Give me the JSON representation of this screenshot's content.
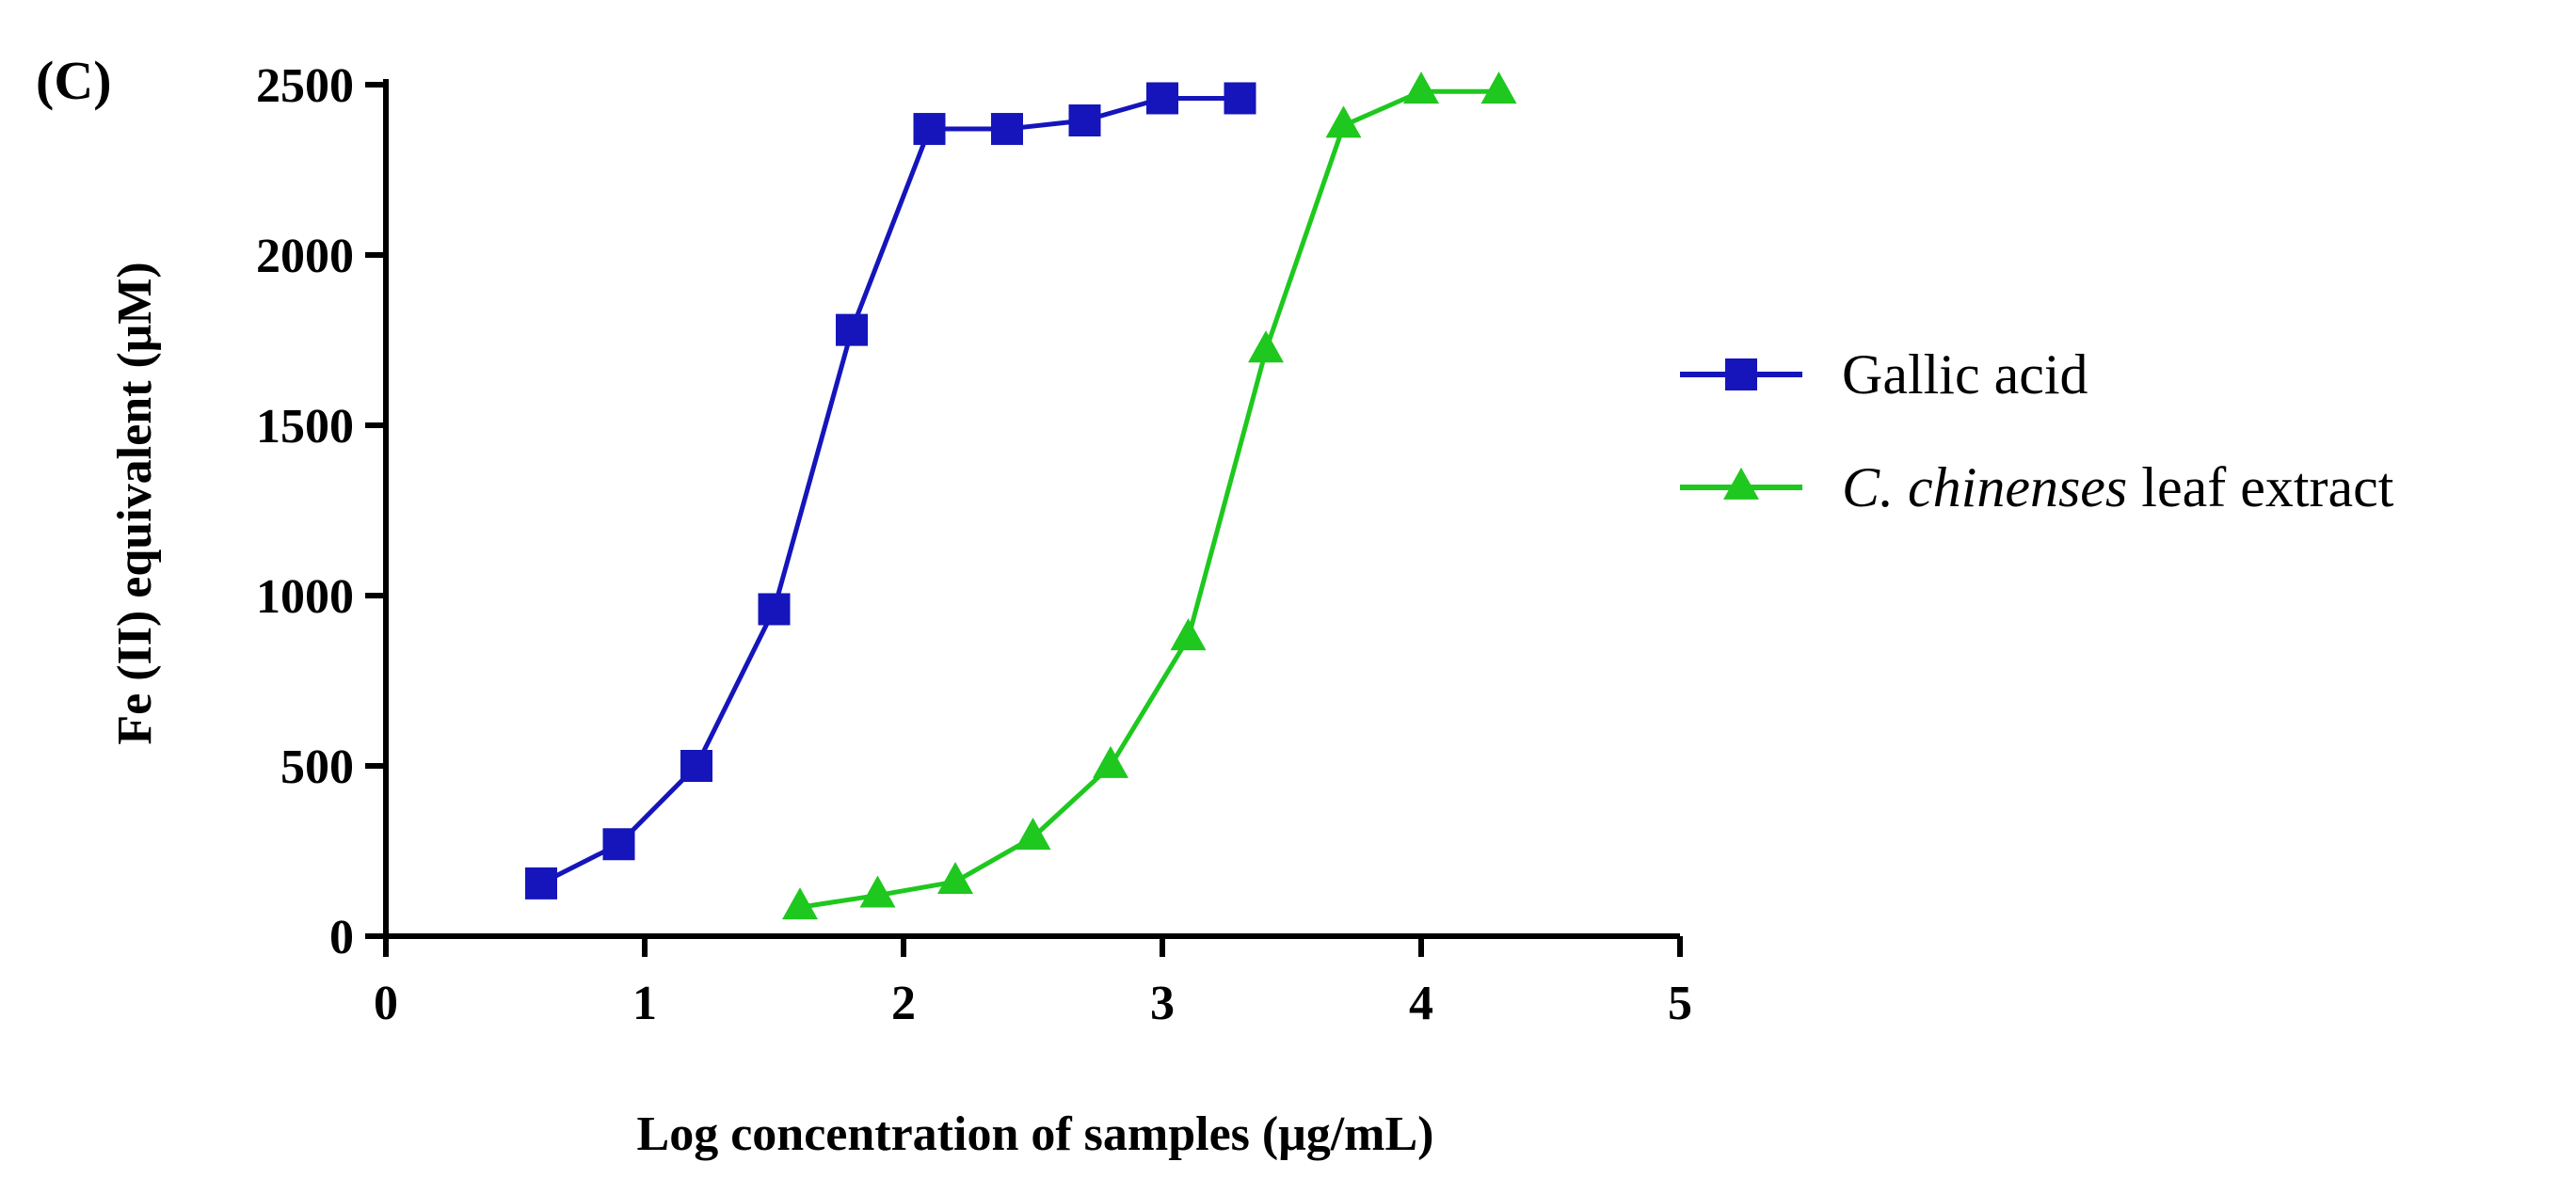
{
  "chart_data": {
    "type": "line",
    "panel_label": "(C)",
    "title": "",
    "xlabel": "Log concentration of samples (μg/mL)",
    "ylabel": "Fe (II) equivalent (μM)",
    "xlim": [
      0,
      5
    ],
    "ylim": [
      0,
      2500
    ],
    "x_ticks": [
      "0",
      "1",
      "2",
      "3",
      "4",
      "5"
    ],
    "y_ticks": [
      "0",
      "500",
      "1000",
      "1500",
      "2000",
      "2500"
    ],
    "grid": false,
    "legend_position": "right",
    "series": [
      {
        "name": "Gallic acid",
        "color": "#1515bb",
        "marker": "square",
        "x": [
          0.6,
          0.9,
          1.2,
          1.5,
          1.8,
          2.1,
          2.4,
          2.7,
          3.0,
          3.3
        ],
        "values": [
          155,
          270,
          500,
          960,
          1780,
          2370,
          2370,
          2395,
          2460,
          2460
        ]
      },
      {
        "name": "C. chinenses leaf extract",
        "legend_italic": "C. chinenses",
        "legend_rest": " leaf extract",
        "color": "#1ec81e",
        "marker": "triangle",
        "x": [
          1.6,
          1.9,
          2.2,
          2.5,
          2.8,
          3.1,
          3.4,
          3.7,
          4.0,
          4.3
        ],
        "values": [
          85,
          120,
          160,
          290,
          500,
          875,
          1720,
          2380,
          2480,
          2480
        ]
      }
    ]
  }
}
